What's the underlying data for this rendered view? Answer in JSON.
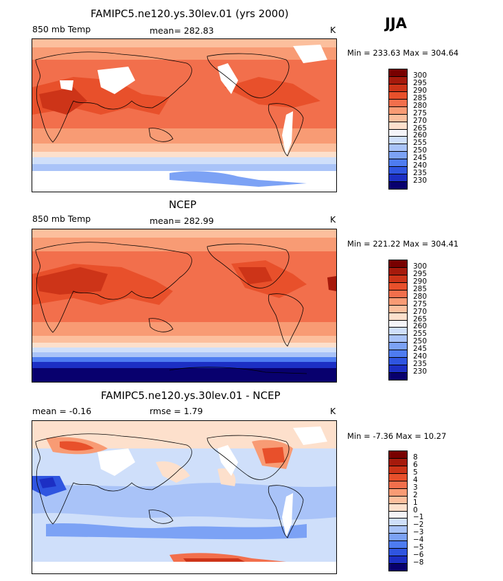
{
  "header": {
    "season": "JJA"
  },
  "panels": [
    {
      "title": "FAMIPC5.ne120.ys.30lev.01 (yrs 2000)",
      "left_label": "850 mb Temp",
      "mid_label": "mean= 282.83",
      "unit": "K",
      "minmax": "Min = 233.63 Max = 304.64",
      "colorbar_labels": [
        "300",
        "295",
        "290",
        "285",
        "280",
        "275",
        "270",
        "265",
        "260",
        "255",
        "250",
        "245",
        "240",
        "235",
        "230"
      ]
    },
    {
      "title": "NCEP",
      "left_label": "850 mb Temp",
      "mid_label": "mean= 282.99",
      "unit": "K",
      "minmax": "Min = 221.22 Max = 304.41",
      "colorbar_labels": [
        "300",
        "295",
        "290",
        "285",
        "280",
        "275",
        "270",
        "265",
        "260",
        "255",
        "250",
        "245",
        "240",
        "235",
        "230"
      ]
    },
    {
      "title": "FAMIPC5.ne120.ys.30lev.01 - NCEP",
      "left_label": "mean =   -0.16",
      "mid_label": "rmse =    1.79",
      "unit": "K",
      "minmax": "Min =  -7.36 Max =  10.27",
      "colorbar_labels": [
        "8",
        "6",
        "5",
        "4",
        "3",
        "2",
        "1",
        "0",
        "−1",
        "−2",
        "−3",
        "−4",
        "−5",
        "−6",
        "−8"
      ]
    }
  ],
  "chart_data": [
    {
      "type": "heatmap",
      "title": "FAMIPC5.ne120.ys.30lev.01 (yrs 2000)",
      "variable": "850 mb Temp",
      "units": "K",
      "mean": 282.83,
      "min": 233.63,
      "max": 304.64,
      "levels": [
        230,
        235,
        240,
        245,
        250,
        255,
        260,
        265,
        270,
        275,
        280,
        285,
        290,
        295,
        300
      ],
      "colors": [
        "#08006e",
        "#1c2fc4",
        "#2f55e0",
        "#4e7cf0",
        "#7ca2f5",
        "#a9c3f8",
        "#cfdffa",
        "#f4f4f8",
        "#fde0cc",
        "#fcbf9d",
        "#f89b74",
        "#f26f4c",
        "#e8502b",
        "#cd3418",
        "#a61a0c",
        "#780000"
      ]
    },
    {
      "type": "heatmap",
      "title": "NCEP",
      "variable": "850 mb Temp",
      "units": "K",
      "mean": 282.99,
      "min": 221.22,
      "max": 304.41,
      "levels": [
        230,
        235,
        240,
        245,
        250,
        255,
        260,
        265,
        270,
        275,
        280,
        285,
        290,
        295,
        300
      ],
      "colors": [
        "#08006e",
        "#1c2fc4",
        "#2f55e0",
        "#4e7cf0",
        "#7ca2f5",
        "#a9c3f8",
        "#cfdffa",
        "#f4f4f8",
        "#fde0cc",
        "#fcbf9d",
        "#f89b74",
        "#f26f4c",
        "#e8502b",
        "#cd3418",
        "#a61a0c",
        "#780000"
      ]
    },
    {
      "type": "heatmap",
      "title": "FAMIPC5.ne120.ys.30lev.01 - NCEP",
      "units": "K",
      "mean": -0.16,
      "rmse": 1.79,
      "min": -7.36,
      "max": 10.27,
      "levels": [
        -8,
        -6,
        -5,
        -4,
        -3,
        -2,
        -1,
        0,
        1,
        2,
        3,
        4,
        5,
        6,
        8
      ],
      "colors": [
        "#08006e",
        "#1c2fc4",
        "#2f55e0",
        "#4e7cf0",
        "#7ca2f5",
        "#a9c3f8",
        "#cfdffa",
        "#f4f4f8",
        "#fde0cc",
        "#fcbf9d",
        "#f89b74",
        "#f26f4c",
        "#e8502b",
        "#cd3418",
        "#a61a0c",
        "#780000"
      ]
    }
  ]
}
